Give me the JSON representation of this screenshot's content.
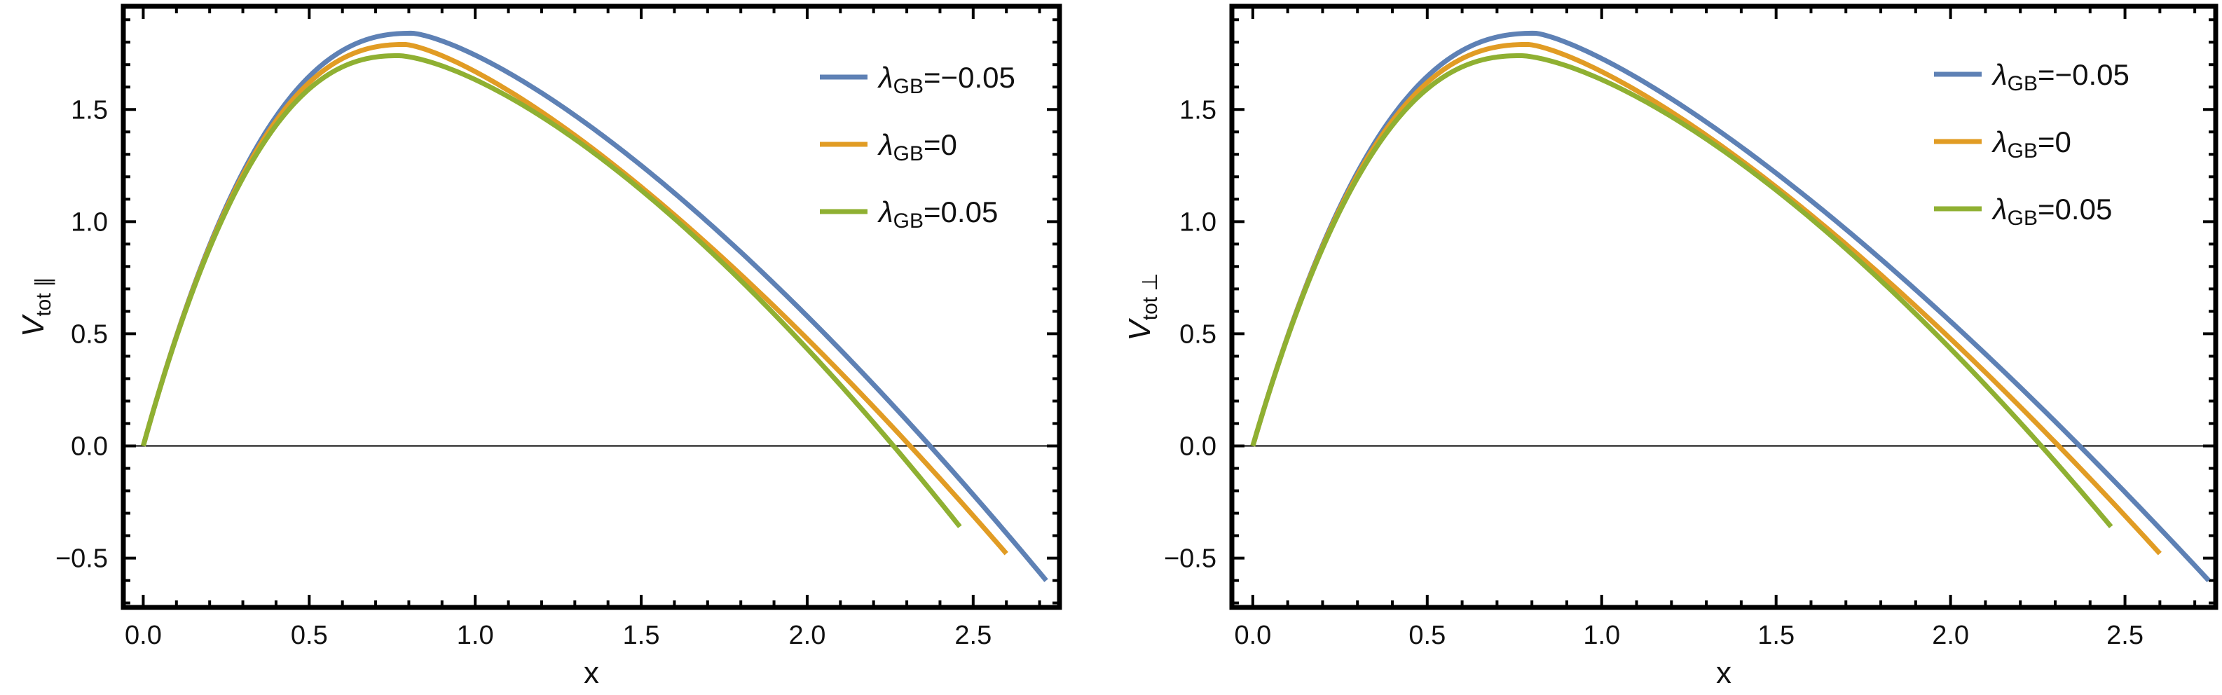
{
  "chart_data": [
    {
      "type": "line",
      "title": "",
      "xlabel": "x",
      "ylabel": {
        "base": "V",
        "sub": "tot ∥"
      },
      "xlim": [
        -0.06,
        2.76
      ],
      "ylim": [
        -0.72,
        1.96
      ],
      "xticks": [
        0.0,
        0.5,
        1.0,
        1.5,
        2.0,
        2.5
      ],
      "xtick_labels": [
        "0.0",
        "0.5",
        "1.0",
        "1.5",
        "2.0",
        "2.5"
      ],
      "yticks": [
        -0.5,
        0.0,
        0.5,
        1.0,
        1.5
      ],
      "ytick_labels": [
        "−0.5",
        "0.0",
        "0.5",
        "1.0",
        "1.5"
      ],
      "zero_line": true,
      "legend_position": "top-right",
      "series": [
        {
          "label": {
            "main": "λ",
            "sub": "GB",
            "rest": "=−0.05"
          },
          "color": "#5e81b5",
          "x_end": 2.72,
          "x_zero": 2.37,
          "x_peak": 0.81,
          "peak": 1.84,
          "y_end": -0.6
        },
        {
          "label": {
            "main": "λ",
            "sub": "GB",
            "rest": "=0"
          },
          "color": "#e19c24",
          "x_end": 2.6,
          "x_zero": 2.31,
          "x_peak": 0.79,
          "peak": 1.79,
          "y_end": -0.48
        },
        {
          "label": {
            "main": "λ",
            "sub": "GB",
            "rest": "=0.05"
          },
          "color": "#8fb032",
          "x_end": 2.46,
          "x_zero": 2.26,
          "x_peak": 0.77,
          "peak": 1.74,
          "y_end": -0.36
        }
      ]
    },
    {
      "type": "line",
      "title": "",
      "xlabel": "x",
      "ylabel": {
        "base": "V",
        "sub": "tot ⊥"
      },
      "xlim": [
        -0.06,
        2.76
      ],
      "ylim": [
        -0.72,
        1.96
      ],
      "xticks": [
        0.0,
        0.5,
        1.0,
        1.5,
        2.0,
        2.5
      ],
      "xtick_labels": [
        "0.0",
        "0.5",
        "1.0",
        "1.5",
        "2.0",
        "2.5"
      ],
      "yticks": [
        -0.5,
        0.0,
        0.5,
        1.0,
        1.5
      ],
      "ytick_labels": [
        "−0.5",
        "0.0",
        "0.5",
        "1.0",
        "1.5"
      ],
      "zero_line": true,
      "legend_position": "top-right",
      "series": [
        {
          "label": {
            "main": "λ",
            "sub": "GB",
            "rest": "=−0.05"
          },
          "color": "#5e81b5",
          "x_end": 2.74,
          "x_zero": 2.37,
          "x_peak": 0.81,
          "peak": 1.84,
          "y_end": -0.6
        },
        {
          "label": {
            "main": "λ",
            "sub": "GB",
            "rest": "=0"
          },
          "color": "#e19c24",
          "x_end": 2.6,
          "x_zero": 2.31,
          "x_peak": 0.79,
          "peak": 1.79,
          "y_end": -0.48
        },
        {
          "label": {
            "main": "λ",
            "sub": "GB",
            "rest": "=0.05"
          },
          "color": "#8fb032",
          "x_end": 2.46,
          "x_zero": 2.26,
          "x_peak": 0.77,
          "peak": 1.74,
          "y_end": -0.36
        }
      ]
    }
  ]
}
